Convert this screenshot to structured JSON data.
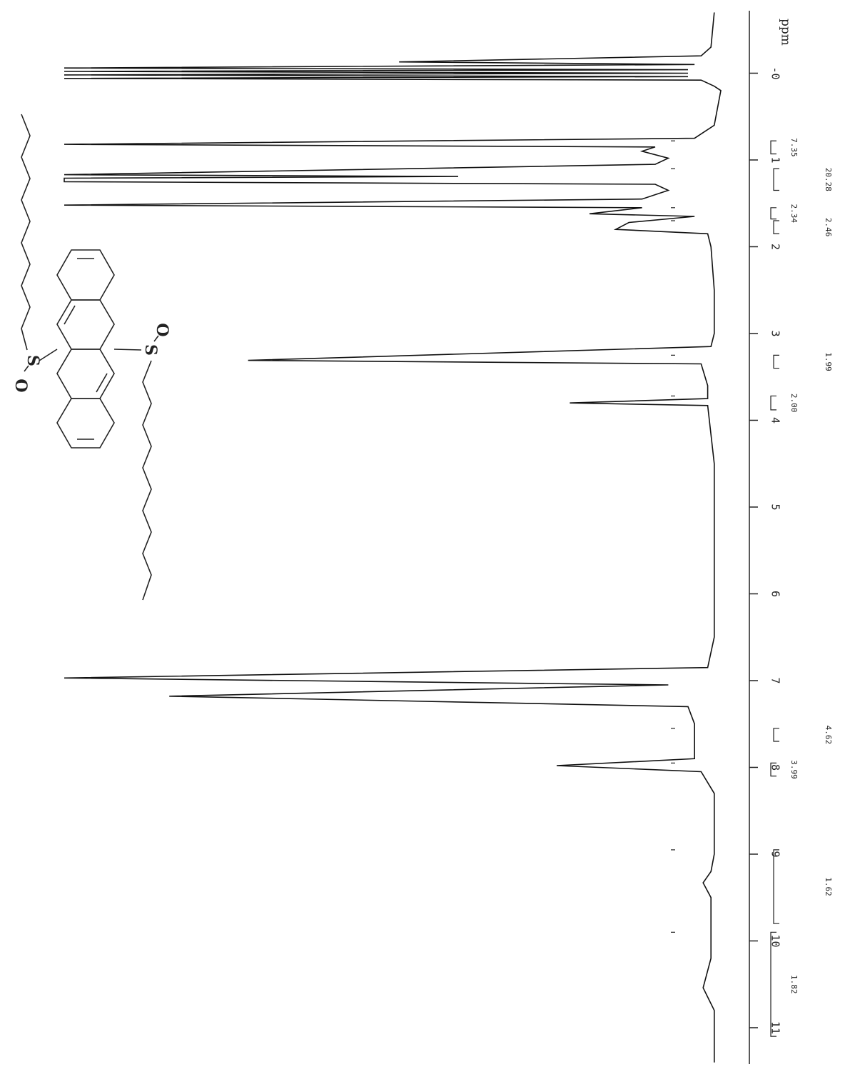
{
  "chart_data": {
    "type": "nmr",
    "x_label": "ppm",
    "xlim": [
      -0.72,
      11.42
    ],
    "xticks": [
      {
        "value": 0,
        "label": "-0"
      },
      1,
      2,
      3,
      4,
      5,
      6,
      7,
      8,
      9,
      10,
      11
    ],
    "ylim": [
      0,
      100
    ],
    "color": "#111111",
    "x": [
      -0.7,
      -0.3,
      -0.2,
      -0.13,
      -0.1,
      -0.06,
      -0.04,
      -0.02,
      0,
      0.02,
      0.04,
      0.06,
      0.08,
      0.15,
      0.2,
      0.6,
      0.75,
      0.82,
      0.85,
      0.9,
      0.98,
      1.05,
      1.17,
      1.19,
      1.21,
      1.25,
      1.28,
      1.35,
      1.45,
      1.52,
      1.55,
      1.62,
      1.65,
      1.72,
      1.8,
      1.85,
      2.0,
      2.5,
      3.0,
      3.15,
      3.31,
      3.35,
      3.6,
      3.75,
      3.8,
      3.83,
      4.5,
      5.5,
      6.5,
      6.85,
      6.97,
      7.05,
      7.18,
      7.3,
      7.5,
      7.9,
      7.98,
      8.05,
      8.3,
      9.0,
      9.2,
      9.33,
      9.5,
      10.2,
      10.54,
      10.8,
      11.4
    ],
    "values": [
      1,
      1.5,
      3,
      49,
      4,
      100,
      5,
      100,
      5,
      100,
      5,
      100,
      3,
      1,
      0,
      1,
      4,
      100,
      10,
      12,
      8,
      10,
      100,
      40,
      100,
      100,
      10,
      8,
      12,
      100,
      12,
      20,
      4,
      14,
      16,
      2,
      1.5,
      1,
      1,
      1.5,
      72,
      3,
      2,
      2,
      23,
      2,
      1,
      1,
      1,
      2,
      100,
      8,
      84,
      5,
      4,
      4,
      25,
      3,
      1,
      1,
      1.5,
      2.7,
      1.5,
      1.5,
      2.7,
      1,
      1
    ],
    "integrals": [
      {
        "from": 0.78,
        "to": 0.93,
        "value": 7.35
      },
      {
        "from": 1.1,
        "to": 1.35,
        "value": 20.28
      },
      {
        "from": 1.55,
        "to": 1.68,
        "value": 2.34
      },
      {
        "from": 1.7,
        "to": 1.85,
        "value": 2.46
      },
      {
        "from": 3.72,
        "to": 3.88,
        "value": 2,
        "label": "2.00"
      },
      {
        "from": 3.25,
        "to": 3.4,
        "value": 1.99
      },
      {
        "from": 7.95,
        "to": 8.1,
        "value": 3.99
      },
      {
        "from": 7.55,
        "to": 7.7,
        "value": 4.62
      },
      {
        "from": 9.9,
        "to": 11.1,
        "value": 1.82
      },
      {
        "from": 8.95,
        "to": 9.8,
        "value": 1.62
      }
    ],
    "structure": {
      "atoms": [
        "O",
        "S",
        "S",
        "O"
      ]
    }
  }
}
